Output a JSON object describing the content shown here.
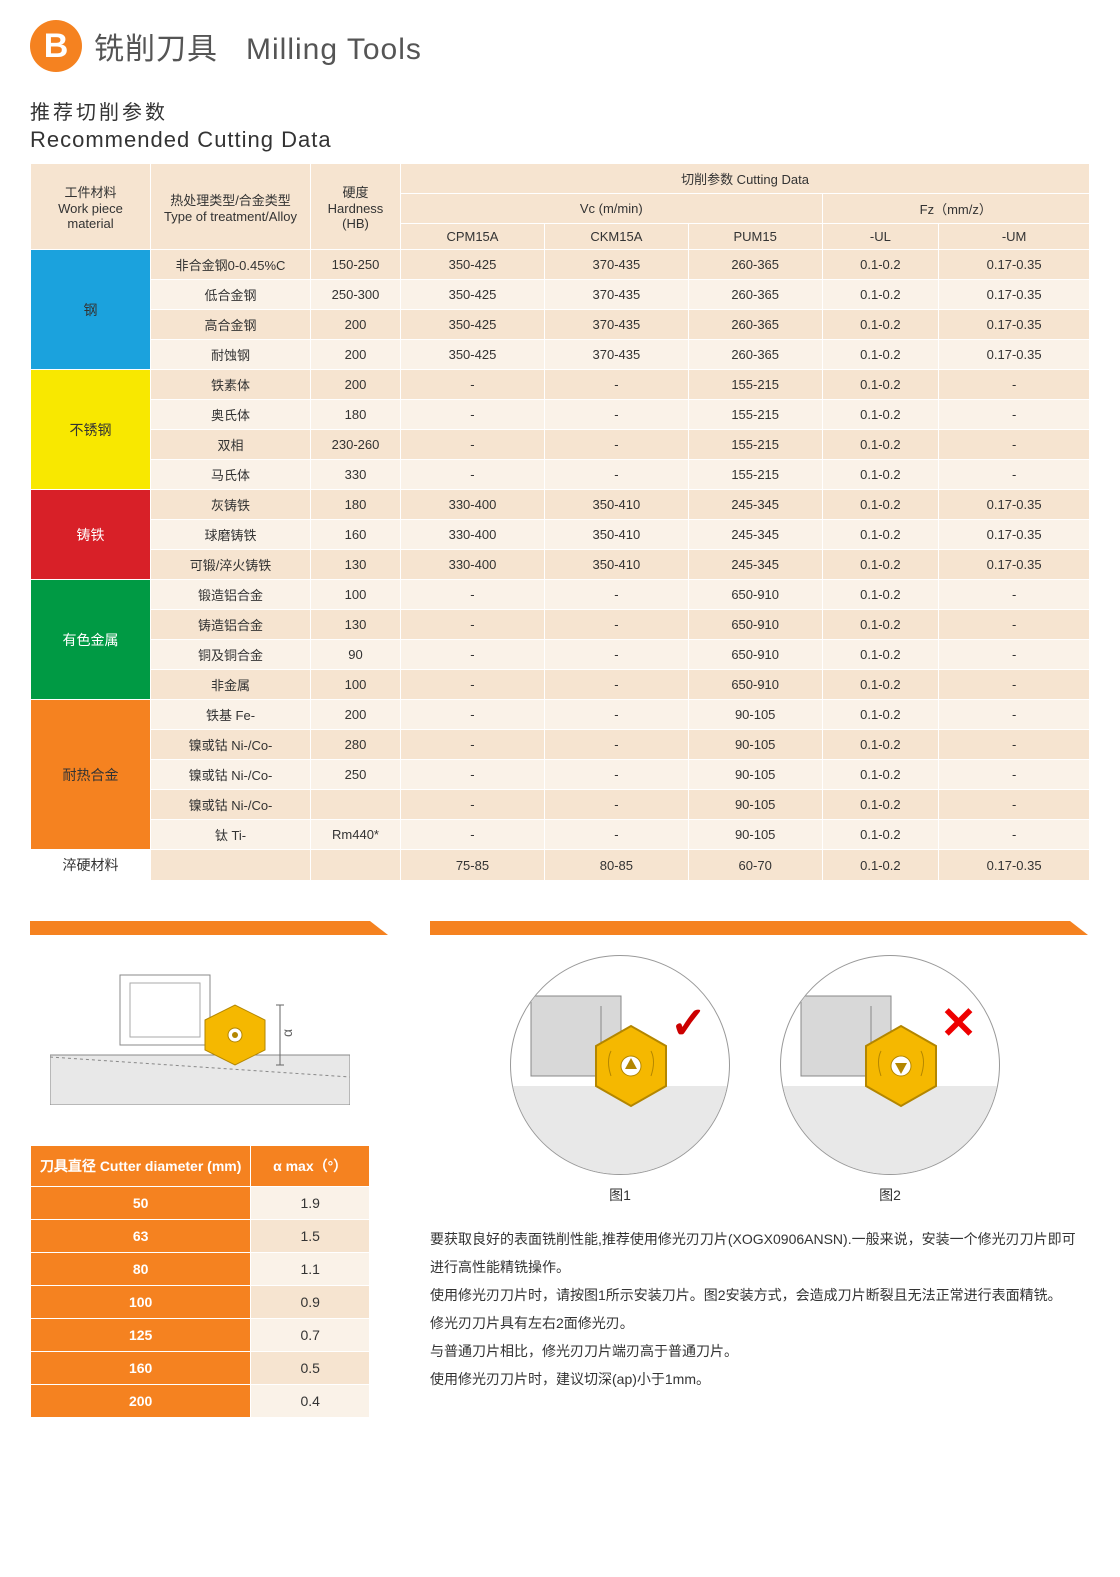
{
  "header": {
    "badge": "B",
    "title_zh": "铣削刀具",
    "title_en": "Milling Tools"
  },
  "subtitle": {
    "zh": "推荐切削参数",
    "en": "Recommended Cutting Data"
  },
  "table_headers": {
    "material_zh": "工件材料",
    "material_en": "Work piece material",
    "treatment_zh": "热处理类型/合金类型",
    "treatment_en": "Type of treatment/Alloy",
    "hardness_zh": "硬度",
    "hardness_en": "Hardness",
    "hardness_unit": "(HB)",
    "cutting_data": "切削参数 Cutting Data",
    "vc": "Vc (m/min)",
    "fz": "Fz（mm/z）",
    "cols": [
      "CPM15A",
      "CKM15A",
      "PUM15",
      "-UL",
      "-UM"
    ]
  },
  "materials": [
    {
      "name": "钢",
      "cls": "steel",
      "rows": [
        {
          "t": "非合金钢0-0.45%C",
          "hb": "150-250",
          "v": [
            "350-425",
            "370-435",
            "260-365",
            "0.1-0.2",
            "0.17-0.35"
          ]
        },
        {
          "t": "低合金钢",
          "hb": "250-300",
          "v": [
            "350-425",
            "370-435",
            "260-365",
            "0.1-0.2",
            "0.17-0.35"
          ]
        },
        {
          "t": "高合金钢",
          "hb": "200",
          "v": [
            "350-425",
            "370-435",
            "260-365",
            "0.1-0.2",
            "0.17-0.35"
          ]
        },
        {
          "t": "耐蚀钢",
          "hb": "200",
          "v": [
            "350-425",
            "370-435",
            "260-365",
            "0.1-0.2",
            "0.17-0.35"
          ]
        }
      ]
    },
    {
      "name": "不锈钢",
      "cls": "sus",
      "rows": [
        {
          "t": "铁素体",
          "hb": "200",
          "v": [
            "-",
            "-",
            "155-215",
            "0.1-0.2",
            "-"
          ]
        },
        {
          "t": "奥氏体",
          "hb": "180",
          "v": [
            "-",
            "-",
            "155-215",
            "0.1-0.2",
            "-"
          ]
        },
        {
          "t": "双相",
          "hb": "230-260",
          "v": [
            "-",
            "-",
            "155-215",
            "0.1-0.2",
            "-"
          ]
        },
        {
          "t": "马氏体",
          "hb": "330",
          "v": [
            "-",
            "-",
            "155-215",
            "0.1-0.2",
            "-"
          ]
        }
      ]
    },
    {
      "name": "铸铁",
      "cls": "castiron",
      "rows": [
        {
          "t": "灰铸铁",
          "hb": "180",
          "v": [
            "330-400",
            "350-410",
            "245-345",
            "0.1-0.2",
            "0.17-0.35"
          ]
        },
        {
          "t": "球磨铸铁",
          "hb": "160",
          "v": [
            "330-400",
            "350-410",
            "245-345",
            "0.1-0.2",
            "0.17-0.35"
          ]
        },
        {
          "t": "可锻/淬火铸铁",
          "hb": "130",
          "v": [
            "330-400",
            "350-410",
            "245-345",
            "0.1-0.2",
            "0.17-0.35"
          ]
        }
      ]
    },
    {
      "name": "有色金属",
      "cls": "nonferr",
      "rows": [
        {
          "t": "锻造铝合金",
          "hb": "100",
          "v": [
            "-",
            "-",
            "650-910",
            "0.1-0.2",
            "-"
          ]
        },
        {
          "t": "铸造铝合金",
          "hb": "130",
          "v": [
            "-",
            "-",
            "650-910",
            "0.1-0.2",
            "-"
          ]
        },
        {
          "t": "铜及铜合金",
          "hb": "90",
          "v": [
            "-",
            "-",
            "650-910",
            "0.1-0.2",
            "-"
          ]
        },
        {
          "t": "非金属",
          "hb": "100",
          "v": [
            "-",
            "-",
            "650-910",
            "0.1-0.2",
            "-"
          ]
        }
      ]
    },
    {
      "name": "耐热合金",
      "cls": "heatr",
      "rows": [
        {
          "t": "铁基 Fe-",
          "hb": "200",
          "v": [
            "-",
            "-",
            "90-105",
            "0.1-0.2",
            "-"
          ]
        },
        {
          "t": "镍或钴 Ni-/Co-",
          "hb": "280",
          "v": [
            "-",
            "-",
            "90-105",
            "0.1-0.2",
            "-"
          ]
        },
        {
          "t": "镍或钴 Ni-/Co-",
          "hb": "250",
          "v": [
            "-",
            "-",
            "90-105",
            "0.1-0.2",
            "-"
          ]
        },
        {
          "t": "镍或钴 Ni-/Co-",
          "hb": "",
          "v": [
            "-",
            "-",
            "90-105",
            "0.1-0.2",
            "-"
          ]
        },
        {
          "t": "钛 Ti-",
          "hb": "Rm440*",
          "v": [
            "-",
            "-",
            "90-105",
            "0.1-0.2",
            "-"
          ]
        }
      ]
    },
    {
      "name": "淬硬材料",
      "cls": "plain",
      "rows": [
        {
          "t": "",
          "hb": "",
          "v": [
            "75-85",
            "80-85",
            "60-70",
            "0.1-0.2",
            "0.17-0.35"
          ]
        }
      ]
    }
  ],
  "cutter_table": {
    "header_dia": "刀具直径 Cutter diameter (mm)",
    "header_alpha": "α max（°）",
    "rows": [
      {
        "d": "50",
        "a": "1.9"
      },
      {
        "d": "63",
        "a": "1.5"
      },
      {
        "d": "80",
        "a": "1.1"
      },
      {
        "d": "100",
        "a": "0.9"
      },
      {
        "d": "125",
        "a": "0.7"
      },
      {
        "d": "160",
        "a": "0.5"
      },
      {
        "d": "200",
        "a": "0.4"
      }
    ]
  },
  "figures": {
    "fig1_label": "图1",
    "fig2_label": "图2"
  },
  "description": {
    "p1": "要获取良好的表面铣削性能,推荐使用修光刃刀片(XOGX0906ANSN).一般来说，安装一个修光刃刀片即可进行高性能精铣操作。",
    "p2": "使用修光刃刀片时，请按图1所示安装刀片。图2安装方式，会造成刀片断裂且无法正常进行表面精铣。",
    "p3": "修光刃刀片具有左右2面修光刃。",
    "p4": "与普通刀片相比，修光刃刀片端刃高于普通刀片。",
    "p5": "使用修光刃刀片时，建议切深(ap)小于1mm。"
  },
  "alpha_label": "α",
  "colors": {
    "orange": "#f58220"
  }
}
